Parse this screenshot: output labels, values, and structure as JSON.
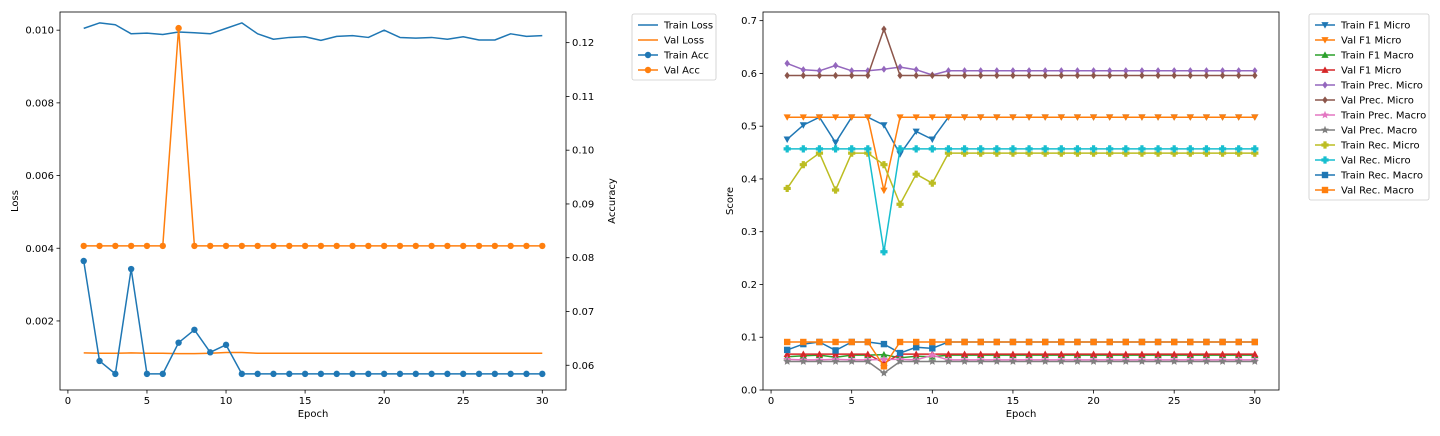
{
  "chart_data": [
    {
      "type": "line",
      "title": "",
      "xlabel": "Epoch",
      "ylabel": "Loss",
      "ylabel_right": "Accuracy",
      "xlim": [
        -0.5,
        31.5
      ],
      "ylim": [
        0.0001,
        0.0105
      ],
      "ylim_right": [
        0.0554,
        0.1257
      ],
      "xticks": [
        0,
        5,
        10,
        15,
        20,
        25,
        30
      ],
      "yticks": [
        "0.002",
        "0.004",
        "0.006",
        "0.008",
        "0.010"
      ],
      "yticks_right": [
        "0.06",
        "0.07",
        "0.08",
        "0.09",
        "0.10",
        "0.11",
        "0.12"
      ],
      "legend_position": "outside-right-top",
      "x": [
        1,
        2,
        3,
        4,
        5,
        6,
        7,
        8,
        9,
        10,
        11,
        12,
        13,
        14,
        15,
        16,
        17,
        18,
        19,
        20,
        21,
        22,
        23,
        24,
        25,
        26,
        27,
        28,
        29,
        30
      ],
      "series": [
        {
          "name": "Train Loss",
          "axis": "left",
          "marker": "none",
          "color": "#1f77b4",
          "values": [
            0.01005,
            0.0102,
            0.01015,
            0.0099,
            0.00992,
            0.00988,
            0.00995,
            0.00993,
            0.0099,
            0.01005,
            0.0102,
            0.0099,
            0.00975,
            0.0098,
            0.00982,
            0.00972,
            0.00983,
            0.00985,
            0.0098,
            0.01,
            0.0098,
            0.00978,
            0.0098,
            0.00975,
            0.00982,
            0.00973,
            0.00973,
            0.0099,
            0.00983,
            0.00985
          ]
        },
        {
          "name": "Val Loss",
          "axis": "left",
          "marker": "none",
          "color": "#ff7f0e",
          "values": [
            0.00112,
            0.00111,
            0.00111,
            0.00112,
            0.00111,
            0.00111,
            0.0011,
            0.0011,
            0.00111,
            0.00113,
            0.00113,
            0.00111,
            0.00111,
            0.00111,
            0.00111,
            0.00111,
            0.00111,
            0.00111,
            0.00111,
            0.00111,
            0.00111,
            0.00111,
            0.00111,
            0.00111,
            0.00111,
            0.00111,
            0.00111,
            0.00111,
            0.00111,
            0.00111
          ]
        },
        {
          "name": "Train Acc",
          "axis": "right",
          "marker": "circle",
          "color": "#1f77b4",
          "values": [
            0.0794,
            0.0608,
            0.0584,
            0.0779,
            0.0584,
            0.0584,
            0.0642,
            0.0666,
            0.0624,
            0.0638,
            0.0584,
            0.0584,
            0.0584,
            0.0584,
            0.0584,
            0.0584,
            0.0584,
            0.0584,
            0.0584,
            0.0584,
            0.0584,
            0.0584,
            0.0584,
            0.0584,
            0.0584,
            0.0584,
            0.0584,
            0.0584,
            0.0584,
            0.0584
          ]
        },
        {
          "name": "Val Acc",
          "axis": "right",
          "marker": "circle",
          "color": "#ff7f0e",
          "values": [
            0.0822,
            0.0822,
            0.0822,
            0.0822,
            0.0822,
            0.0822,
            0.1227,
            0.0822,
            0.0822,
            0.0822,
            0.0822,
            0.0822,
            0.0822,
            0.0822,
            0.0822,
            0.0822,
            0.0822,
            0.0822,
            0.0822,
            0.0822,
            0.0822,
            0.0822,
            0.0822,
            0.0822,
            0.0822,
            0.0822,
            0.0822,
            0.0822,
            0.0822,
            0.0822
          ]
        }
      ]
    },
    {
      "type": "line",
      "title": "",
      "xlabel": "Epoch",
      "ylabel": "Score",
      "xlim": [
        -0.5,
        31.5
      ],
      "ylim": [
        0.0,
        0.7164
      ],
      "xticks": [
        0,
        5,
        10,
        15,
        20,
        25,
        30
      ],
      "yticks": [
        "0.0",
        "0.1",
        "0.2",
        "0.3",
        "0.4",
        "0.5",
        "0.6",
        "0.7"
      ],
      "legend_position": "outside-right-top",
      "x": [
        1,
        2,
        3,
        4,
        5,
        6,
        7,
        8,
        9,
        10,
        11,
        12,
        13,
        14,
        15,
        16,
        17,
        18,
        19,
        20,
        21,
        22,
        23,
        24,
        25,
        26,
        27,
        28,
        29,
        30
      ],
      "series": [
        {
          "name": "Train F1 Micro",
          "marker": "triangle-down",
          "color": "#1f77b4",
          "values": [
            0.475,
            0.502,
            0.517,
            0.469,
            0.517,
            0.517,
            0.502,
            0.447,
            0.49,
            0.475,
            0.517,
            0.517,
            0.517,
            0.517,
            0.517,
            0.517,
            0.517,
            0.517,
            0.517,
            0.517,
            0.517,
            0.517,
            0.517,
            0.517,
            0.517,
            0.517,
            0.517,
            0.517,
            0.517,
            0.517
          ]
        },
        {
          "name": "Val F1 Micro",
          "marker": "triangle-down",
          "color": "#ff7f0e",
          "values": [
            0.517,
            0.517,
            0.517,
            0.517,
            0.517,
            0.517,
            0.378,
            0.517,
            0.517,
            0.517,
            0.517,
            0.517,
            0.517,
            0.517,
            0.517,
            0.517,
            0.517,
            0.517,
            0.517,
            0.517,
            0.517,
            0.517,
            0.517,
            0.517,
            0.517,
            0.517,
            0.517,
            0.517,
            0.517,
            0.517
          ]
        },
        {
          "name": "Train F1 Macro",
          "marker": "triangle-up",
          "color": "#2ca02c",
          "values": [
            0.063,
            0.065,
            0.066,
            0.062,
            0.066,
            0.066,
            0.067,
            0.061,
            0.064,
            0.063,
            0.066,
            0.066,
            0.066,
            0.066,
            0.066,
            0.066,
            0.066,
            0.066,
            0.066,
            0.066,
            0.066,
            0.066,
            0.066,
            0.066,
            0.066,
            0.066,
            0.066,
            0.066,
            0.066,
            0.066
          ]
        },
        {
          "name": "Val F1 Micro",
          "marker": "triangle-up",
          "color": "#d62728",
          "values": [
            0.068,
            0.068,
            0.068,
            0.068,
            0.068,
            0.068,
            0.051,
            0.068,
            0.068,
            0.068,
            0.068,
            0.068,
            0.068,
            0.068,
            0.068,
            0.068,
            0.068,
            0.068,
            0.068,
            0.068,
            0.068,
            0.068,
            0.068,
            0.068,
            0.068,
            0.068,
            0.068,
            0.068,
            0.068,
            0.068
          ]
        },
        {
          "name": "Train Prec. Micro",
          "marker": "diamond",
          "color": "#9467bd",
          "values": [
            0.619,
            0.607,
            0.605,
            0.615,
            0.605,
            0.605,
            0.608,
            0.612,
            0.607,
            0.597,
            0.605,
            0.605,
            0.605,
            0.605,
            0.605,
            0.605,
            0.605,
            0.605,
            0.605,
            0.605,
            0.605,
            0.605,
            0.605,
            0.605,
            0.605,
            0.605,
            0.605,
            0.605,
            0.605,
            0.605
          ]
        },
        {
          "name": "Val Prec. Micro",
          "marker": "diamond",
          "color": "#8c564b",
          "values": [
            0.596,
            0.596,
            0.596,
            0.596,
            0.596,
            0.596,
            0.684,
            0.596,
            0.596,
            0.596,
            0.596,
            0.596,
            0.596,
            0.596,
            0.596,
            0.596,
            0.596,
            0.596,
            0.596,
            0.596,
            0.596,
            0.596,
            0.596,
            0.596,
            0.596,
            0.596,
            0.596,
            0.596,
            0.596,
            0.596
          ]
        },
        {
          "name": "Train Prec. Macro",
          "marker": "star",
          "color": "#e377c2",
          "values": [
            0.058,
            0.057,
            0.057,
            0.058,
            0.057,
            0.057,
            0.058,
            0.058,
            0.057,
            0.066,
            0.057,
            0.057,
            0.057,
            0.057,
            0.057,
            0.057,
            0.057,
            0.057,
            0.057,
            0.057,
            0.057,
            0.057,
            0.057,
            0.057,
            0.057,
            0.057,
            0.057,
            0.057,
            0.057,
            0.057
          ]
        },
        {
          "name": "Val Prec. Macro",
          "marker": "star",
          "color": "#7f7f7f",
          "values": [
            0.054,
            0.054,
            0.054,
            0.054,
            0.054,
            0.054,
            0.032,
            0.054,
            0.054,
            0.054,
            0.054,
            0.054,
            0.054,
            0.054,
            0.054,
            0.054,
            0.054,
            0.054,
            0.054,
            0.054,
            0.054,
            0.054,
            0.054,
            0.054,
            0.054,
            0.054,
            0.054,
            0.054,
            0.054,
            0.054
          ]
        },
        {
          "name": "Train Rec. Micro",
          "marker": "plus",
          "color": "#bcbd22",
          "values": [
            0.382,
            0.427,
            0.449,
            0.379,
            0.449,
            0.449,
            0.427,
            0.352,
            0.409,
            0.392,
            0.449,
            0.449,
            0.449,
            0.449,
            0.449,
            0.449,
            0.449,
            0.449,
            0.449,
            0.449,
            0.449,
            0.449,
            0.449,
            0.449,
            0.449,
            0.449,
            0.449,
            0.449,
            0.449,
            0.449
          ]
        },
        {
          "name": "Val Rec. Micro",
          "marker": "plus",
          "color": "#17becf",
          "values": [
            0.457,
            0.457,
            0.457,
            0.457,
            0.457,
            0.457,
            0.262,
            0.457,
            0.457,
            0.457,
            0.457,
            0.457,
            0.457,
            0.457,
            0.457,
            0.457,
            0.457,
            0.457,
            0.457,
            0.457,
            0.457,
            0.457,
            0.457,
            0.457,
            0.457,
            0.457,
            0.457,
            0.457,
            0.457,
            0.457
          ]
        },
        {
          "name": "Train Rec. Macro",
          "marker": "square",
          "color": "#1f77b4",
          "values": [
            0.076,
            0.087,
            0.091,
            0.075,
            0.091,
            0.091,
            0.087,
            0.07,
            0.081,
            0.079,
            0.091,
            0.091,
            0.091,
            0.091,
            0.091,
            0.091,
            0.091,
            0.091,
            0.091,
            0.091,
            0.091,
            0.091,
            0.091,
            0.091,
            0.091,
            0.091,
            0.091,
            0.091,
            0.091,
            0.091
          ]
        },
        {
          "name": "Val Rec. Macro",
          "marker": "square",
          "color": "#ff7f0e",
          "values": [
            0.091,
            0.091,
            0.091,
            0.091,
            0.091,
            0.091,
            0.045,
            0.091,
            0.091,
            0.091,
            0.091,
            0.091,
            0.091,
            0.091,
            0.091,
            0.091,
            0.091,
            0.091,
            0.091,
            0.091,
            0.091,
            0.091,
            0.091,
            0.091,
            0.091,
            0.091,
            0.091,
            0.091,
            0.091,
            0.091
          ]
        }
      ]
    }
  ]
}
